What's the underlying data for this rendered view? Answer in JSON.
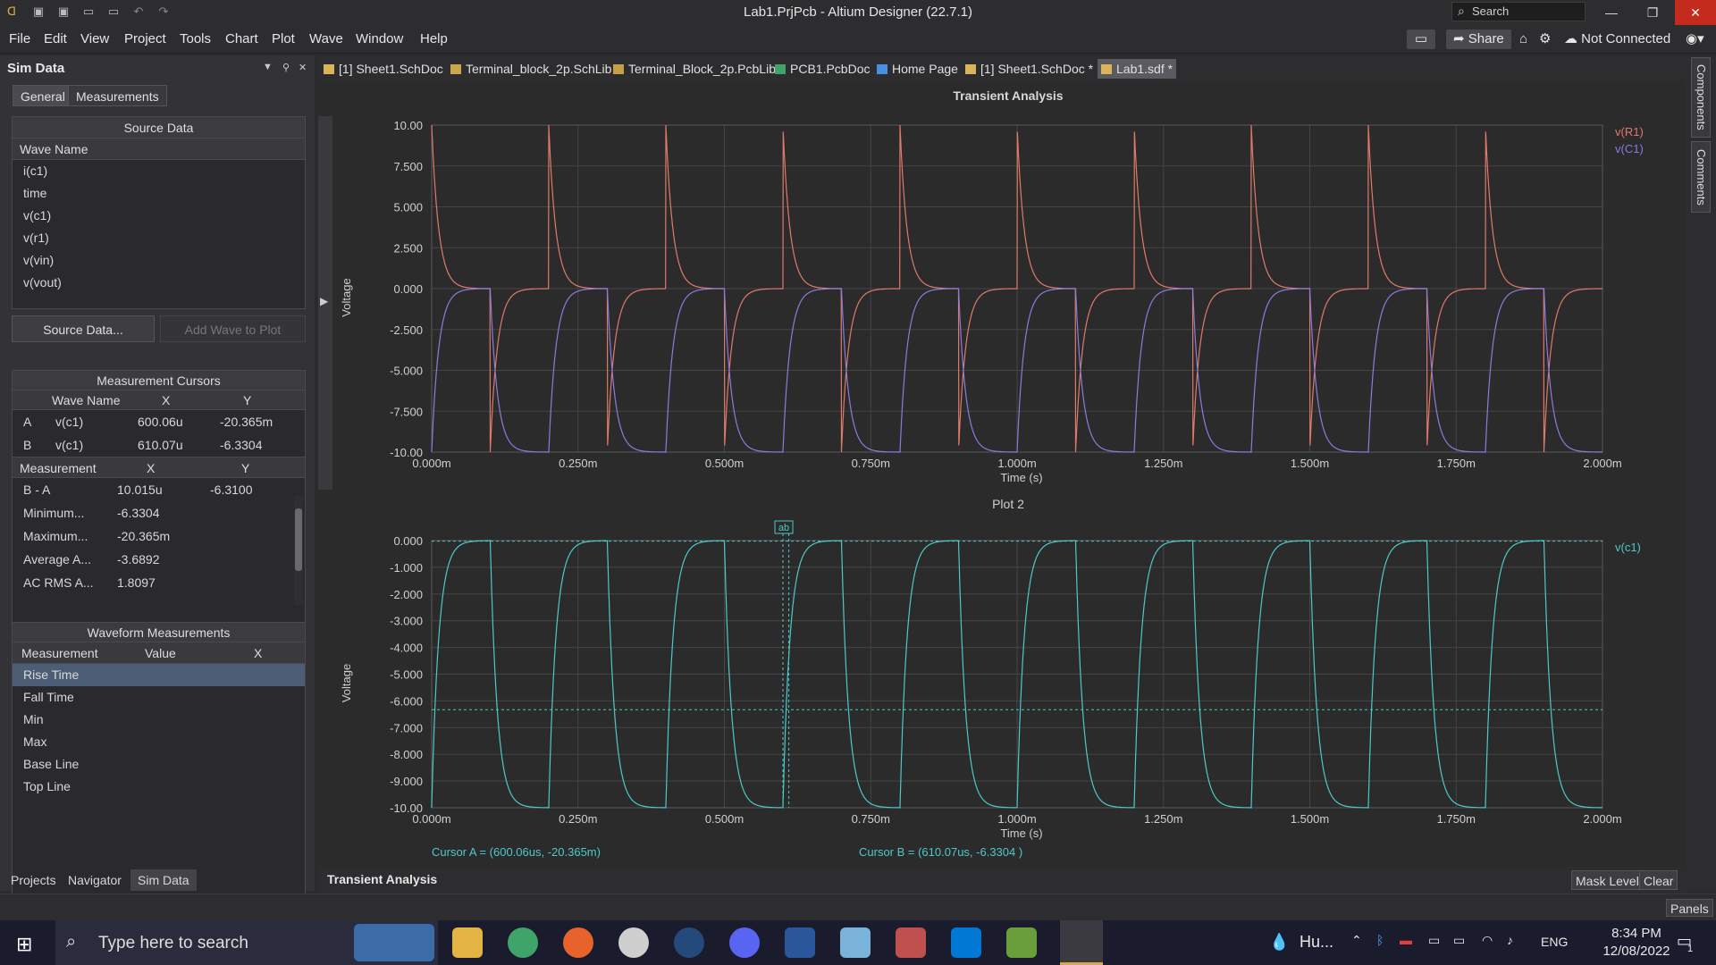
{
  "window": {
    "title": "Lab1.PrjPcb - Altium Designer (22.7.1)",
    "search_placeholder": "Search"
  },
  "menu": [
    "File",
    "Edit",
    "View",
    "Project",
    "Tools",
    "Chart",
    "Plot",
    "Wave",
    "Window",
    "Help"
  ],
  "toolbar_right": {
    "share": "Share",
    "connection": "Not Connected"
  },
  "panel": {
    "title": "Sim Data",
    "tabs": [
      "General",
      "Measurements"
    ],
    "source_data": {
      "header": "Source Data",
      "column": "Wave Name",
      "waves": [
        "i(c1)",
        "time",
        "v(c1)",
        "v(r1)",
        "v(vin)",
        "v(vout)"
      ],
      "button": "Source Data...",
      "add_button": "Add Wave to Plot"
    },
    "cursors": {
      "header": "Measurement Cursors",
      "columns": [
        "Wave Name",
        "X",
        "Y"
      ],
      "rows": [
        {
          "id": "A",
          "wave": "v(c1)",
          "x": "600.06u",
          "y": "-20.365m"
        },
        {
          "id": "B",
          "wave": "v(c1)",
          "x": "610.07u",
          "y": "-6.3304"
        }
      ],
      "meas_columns": [
        "Measurement",
        "X",
        "Y"
      ],
      "measurements": [
        {
          "name": "B - A",
          "x": "10.015u",
          "y": "-6.3100"
        },
        {
          "name": "Minimum...",
          "x": "-6.3304",
          "y": ""
        },
        {
          "name": "Maximum...",
          "x": "-20.365m",
          "y": ""
        },
        {
          "name": "Average  A...",
          "x": "-3.6892",
          "y": ""
        },
        {
          "name": "AC RMS  A...",
          "x": "1.8097",
          "y": ""
        }
      ]
    },
    "waveform": {
      "header": "Waveform Measurements",
      "columns": [
        "Measurement",
        "Value",
        "X"
      ],
      "items": [
        "Rise Time",
        "Fall Time",
        "Min",
        "Max",
        "Base Line",
        "Top Line"
      ]
    },
    "bottom_tabs": [
      "Projects",
      "Navigator",
      "Sim Data"
    ]
  },
  "doc_tabs": [
    "[1] Sheet1.SchDoc",
    "Terminal_block_2p.SchLib",
    "Terminal_Block_2p.PcbLib",
    "PCB1.PcbDoc",
    "Home Page",
    "[1] Sheet1.SchDoc *",
    "Lab1.sdf *"
  ],
  "right_tabs": [
    "Components",
    "Comments"
  ],
  "bottom": {
    "tab": "Transient Analysis",
    "mask_level": "Mask Level",
    "clear": "Clear",
    "panels": "Panels"
  },
  "chart_data": [
    {
      "type": "line",
      "title": "Transient Analysis",
      "xlabel": "Time (s)",
      "ylabel": "Voltage",
      "xlim": [
        0,
        0.002
      ],
      "ylim": [
        -10,
        10
      ],
      "xticks": [
        "0.000m",
        "0.250m",
        "0.500m",
        "0.750m",
        "1.000m",
        "1.250m",
        "1.500m",
        "1.750m",
        "2.000m"
      ],
      "yticks": [
        "10.00",
        "7.500",
        "5.000",
        "2.500",
        "0.000",
        "-2.500",
        "-5.000",
        "-7.500",
        "-10.00"
      ],
      "grid": true,
      "legend_position": "top-right",
      "series": [
        {
          "name": "v(R1)",
          "color": "#e07a6a",
          "description_waveform": "square-driven RC",
          "period": 0.0002,
          "edges_high_at": [
            0,
            0.0002,
            0.0004,
            0.0006,
            0.0008,
            0.001,
            0.0012,
            0.0014,
            0.0016,
            0.0018
          ],
          "tau": 1.2e-05
        },
        {
          "name": "v(C1)",
          "color": "#8a7be0",
          "period": 0.0002,
          "tau": 1.2e-05
        }
      ]
    },
    {
      "type": "line",
      "title": "Plot 2",
      "xlabel": "Time (s)",
      "ylabel": "Voltage",
      "xlim": [
        0,
        0.002
      ],
      "ylim": [
        -10,
        0
      ],
      "xticks": [
        "0.000m",
        "0.250m",
        "0.500m",
        "0.750m",
        "1.000m",
        "1.250m",
        "1.500m",
        "1.750m",
        "2.000m"
      ],
      "yticks": [
        "0.000",
        "-1.000",
        "-2.000",
        "-3.000",
        "-4.000",
        "-5.000",
        "-6.000",
        "-7.000",
        "-8.000",
        "-9.000",
        "-10.00"
      ],
      "grid": true,
      "legend_position": "top-right",
      "series": [
        {
          "name": "v(c1)",
          "color": "#4ec9c9",
          "period": 0.0002,
          "tau": 1.2e-05
        }
      ],
      "cursor_a_text": "Cursor A = (600.06us, -20.365m)",
      "cursor_b_text": "Cursor B = (610.07us, -6.3304 )",
      "cursor_label": "ab",
      "cursor_a": {
        "x": 0.00060006,
        "y": -0.020365
      },
      "cursor_b": {
        "x": 0.00061007,
        "y": -6.3304
      }
    }
  ],
  "taskbar": {
    "search_placeholder": "Type here to search",
    "weather": "Hu...",
    "lang": "ENG",
    "time": "8:34 PM",
    "date": "12/08/2022",
    "notif_count": "1"
  }
}
